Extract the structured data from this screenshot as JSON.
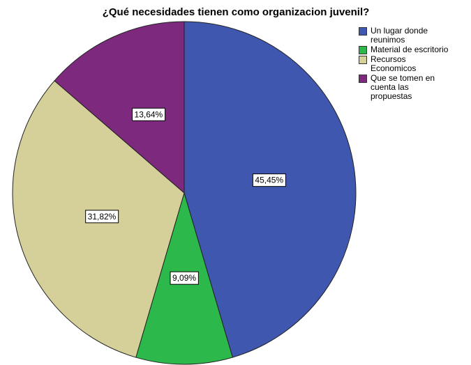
{
  "chart_data": {
    "type": "pie",
    "title": "¿Qué necesidades tienen como organizacion juvenil?",
    "categories": [
      "Un lugar donde reunimos",
      "Material de escritorio",
      "Recursos Economicos",
      "Que se tomen en cuenta las propuestas"
    ],
    "values": [
      45.45,
      9.09,
      31.82,
      13.64
    ],
    "value_labels": [
      "45,45%",
      "9,09%",
      "31,82%",
      "13,64%"
    ],
    "colors": [
      "#3f57ae",
      "#2db84b",
      "#d5d09a",
      "#7d2a7e"
    ],
    "legend": "right"
  }
}
